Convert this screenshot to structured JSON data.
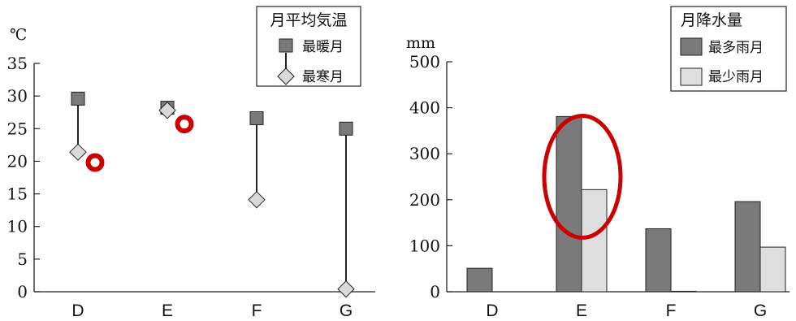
{
  "chart_data": [
    {
      "type": "scatter",
      "title": "月平均気温",
      "ylabel": "℃",
      "ylim": [
        0,
        35
      ],
      "yticks": [
        "0",
        "5",
        "10",
        "15",
        "20",
        "25",
        "30",
        "35"
      ],
      "categories": [
        "D",
        "E",
        "F",
        "G"
      ],
      "series": [
        {
          "name": "最暖月",
          "values": [
            29.6,
            28.2,
            26.6,
            25.0
          ],
          "color": "#7a7a7a",
          "marker": "square"
        },
        {
          "name": "最寒月",
          "values": [
            21.4,
            27.8,
            14.1,
            0.4
          ],
          "color": "#d9d9d9",
          "marker": "diamond"
        }
      ],
      "annotations": [
        {
          "type": "circle",
          "color": "#cc0000",
          "category": "D",
          "value": 19.8
        },
        {
          "type": "circle",
          "color": "#cc0000",
          "category": "E",
          "value": 25.7
        }
      ],
      "legend": "top-right",
      "grid": false
    },
    {
      "type": "bar",
      "title": "月降水量",
      "ylabel": "mm",
      "ylim": [
        0,
        500
      ],
      "yticks": [
        "0",
        "100",
        "200",
        "300",
        "400",
        "500"
      ],
      "categories": [
        "D",
        "E",
        "F",
        "G"
      ],
      "series": [
        {
          "name": "最多雨月",
          "values": [
            51,
            381,
            137,
            196
          ],
          "color": "#7a7a7a"
        },
        {
          "name": "最少雨月",
          "values": [
            0,
            222,
            1,
            97
          ],
          "color": "#dedede"
        }
      ],
      "annotations": [
        {
          "type": "ellipse",
          "color": "#cc0000",
          "category": "E"
        }
      ],
      "legend": "top-right",
      "grid": false
    }
  ]
}
